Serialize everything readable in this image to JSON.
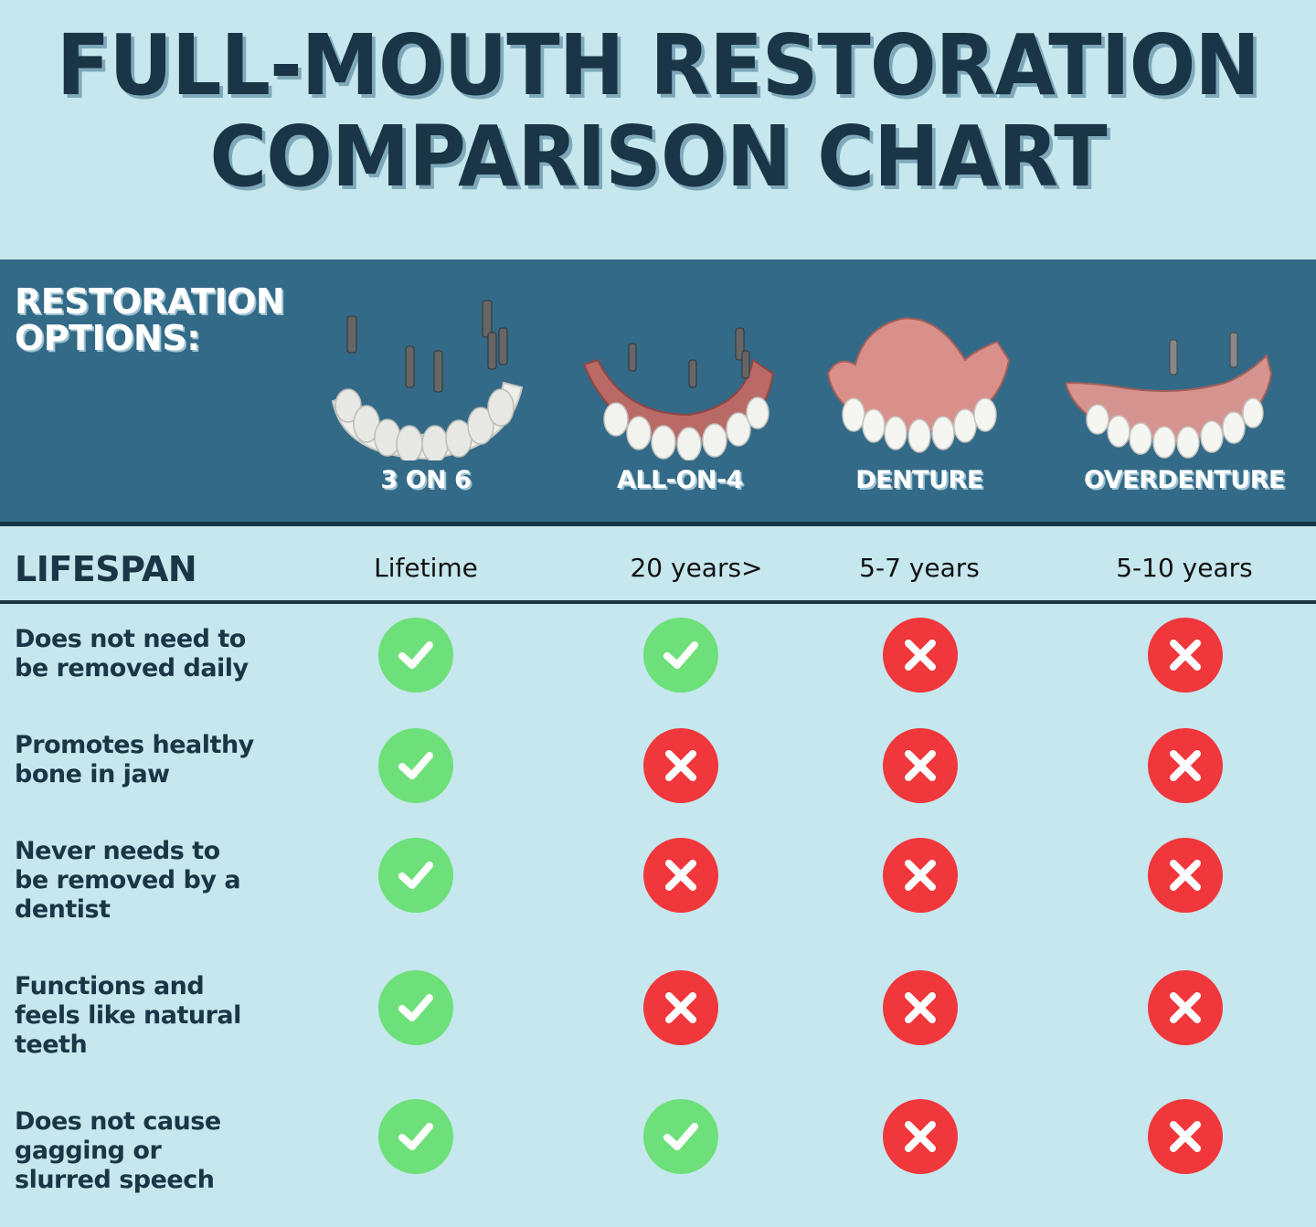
{
  "title": {
    "line1": "FULL-MOUTH RESTORATION",
    "line2": "COMPARISON CHART"
  },
  "header": {
    "options_label_line1": "RESTORATION",
    "options_label_line2": "OPTIONS:",
    "columns": [
      {
        "label": "3 ON 6",
        "image": "3-on-6-implant-bridge-illustration"
      },
      {
        "label": "ALL-ON-4",
        "image": "all-on-4-implant-denture-illustration"
      },
      {
        "label": "DENTURE",
        "image": "full-denture-illustration"
      },
      {
        "label": "OVERDENTURE",
        "image": "overdenture-with-implants-illustration"
      }
    ]
  },
  "lifespan": {
    "label": "LIFESPAN",
    "values": [
      "Lifetime",
      "20 years>",
      "5-7 years",
      "5-10 years"
    ]
  },
  "features": [
    {
      "label_lines": [
        "Does not need to",
        "be removed daily"
      ],
      "values": [
        true,
        true,
        false,
        false
      ]
    },
    {
      "label_lines": [
        "Promotes healthy",
        "bone in jaw"
      ],
      "values": [
        true,
        false,
        false,
        false
      ]
    },
    {
      "label_lines": [
        "Never needs to",
        "be removed by a",
        "dentist"
      ],
      "values": [
        true,
        false,
        false,
        false
      ]
    },
    {
      "label_lines": [
        "Functions and",
        "feels like natural",
        "teeth"
      ],
      "values": [
        true,
        false,
        false,
        false
      ]
    },
    {
      "label_lines": [
        "Does not cause",
        "gagging or",
        "slurred speech"
      ],
      "values": [
        true,
        true,
        false,
        false
      ]
    }
  ],
  "icons": {
    "yes": "check-icon",
    "no": "x-icon"
  },
  "colors": {
    "background": "#c5e7ed",
    "header_band": "#336a87",
    "navy": "#1a3545",
    "check_green": "#6ee07a",
    "x_red": "#f0373b"
  },
  "chart_data": {
    "type": "table",
    "title": "FULL-MOUTH RESTORATION COMPARISON CHART",
    "columns": [
      "3 ON 6",
      "ALL-ON-4",
      "DENTURE",
      "OVERDENTURE"
    ],
    "rows": [
      {
        "criterion": "LIFESPAN",
        "values": [
          "Lifetime",
          "20 years>",
          "5-7 years",
          "5-10 years"
        ]
      },
      {
        "criterion": "Does not need to be removed daily",
        "values": [
          true,
          true,
          false,
          false
        ]
      },
      {
        "criterion": "Promotes healthy bone in jaw",
        "values": [
          true,
          false,
          false,
          false
        ]
      },
      {
        "criterion": "Never needs to be removed by a dentist",
        "values": [
          true,
          false,
          false,
          false
        ]
      },
      {
        "criterion": "Functions and feels like natural teeth",
        "values": [
          true,
          false,
          false,
          false
        ]
      },
      {
        "criterion": "Does not cause gagging or slurred speech",
        "values": [
          true,
          true,
          false,
          false
        ]
      }
    ]
  }
}
